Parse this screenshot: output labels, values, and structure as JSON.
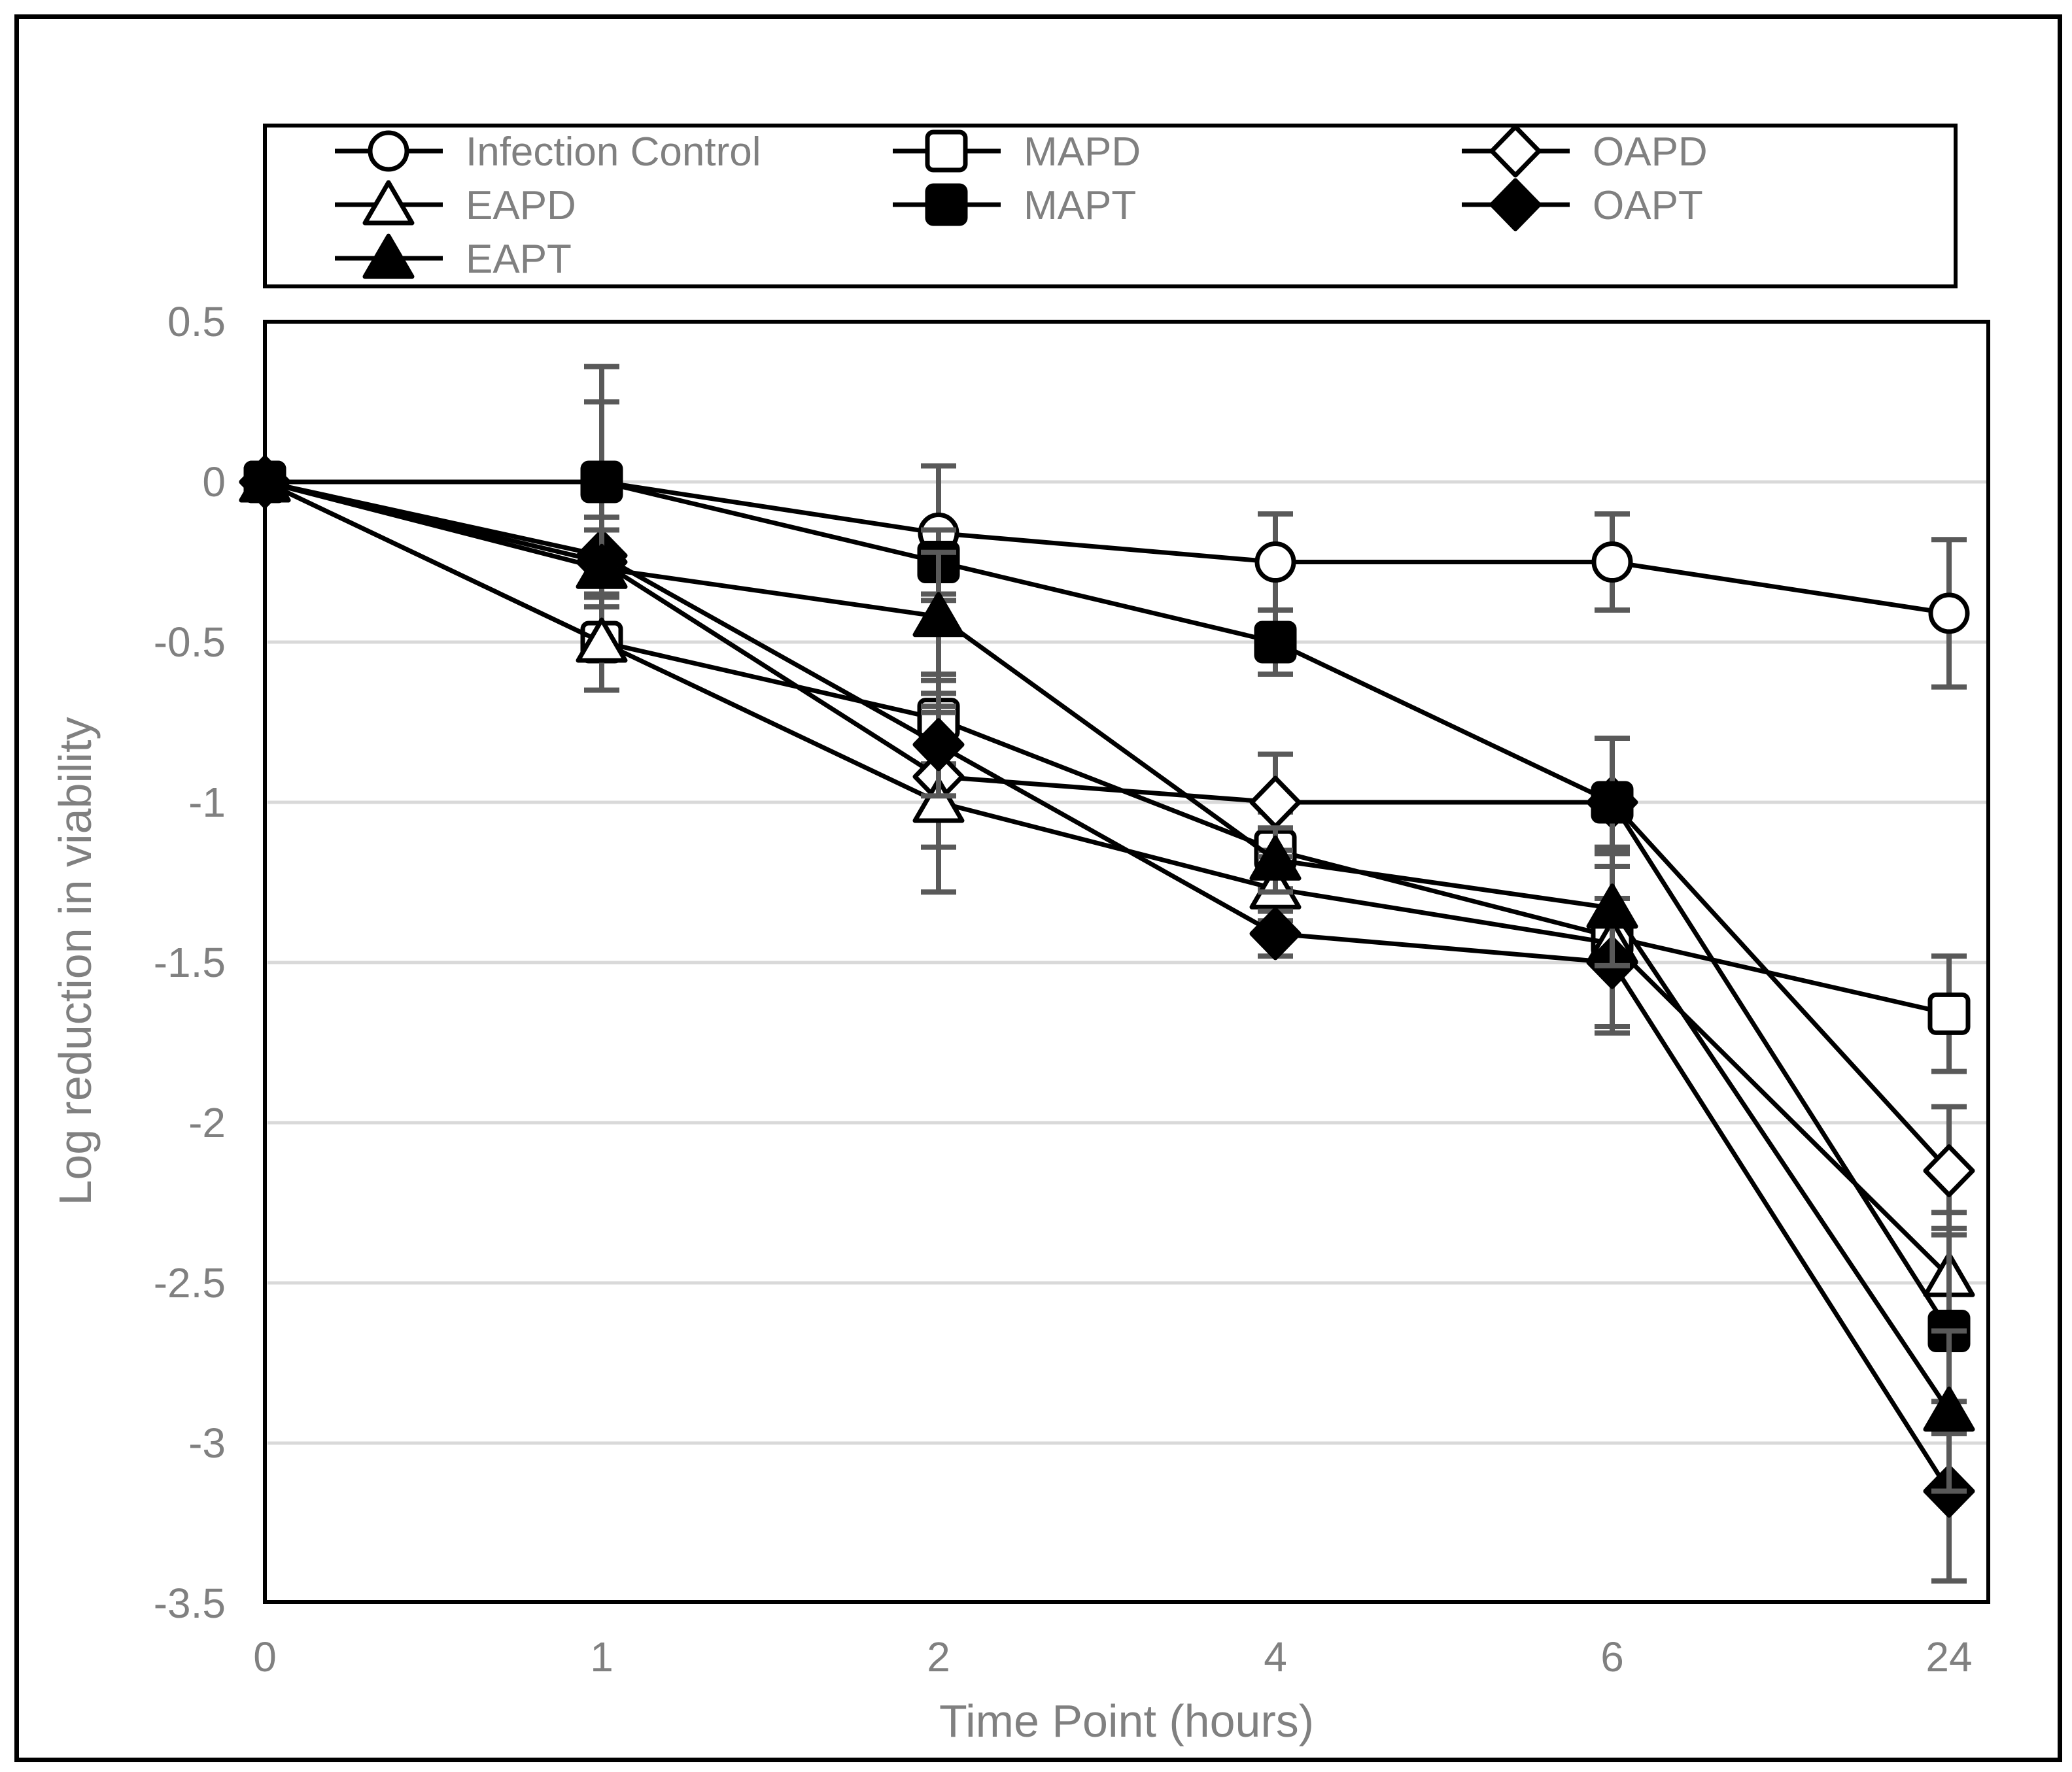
{
  "chart_data": {
    "type": "line",
    "xlabel": "Time Point (hours)",
    "ylabel": "Log reduction in viability",
    "x_axis_type": "categorical",
    "x_tick_labels": [
      "0",
      "1",
      "2",
      "4",
      "6",
      "24"
    ],
    "ylim": [
      -3.5,
      0.5
    ],
    "y_tick_step": 0.5,
    "y_tick_labels": [
      "0.5",
      "0",
      "-0.5",
      "-1",
      "-1.5",
      "-2",
      "-2.5",
      "-3",
      "-3.5"
    ],
    "grid": "horizontal-major",
    "legend_position": "top",
    "series": [
      {
        "name": "Infection Control",
        "marker": "circle-open",
        "values": [
          0,
          0,
          -0.16,
          -0.25,
          -0.25,
          -0.41
        ],
        "errors": [
          0,
          0.25,
          0.21,
          0.15,
          0.15,
          0.23
        ]
      },
      {
        "name": "MAPD",
        "marker": "square-open",
        "values": [
          0,
          -0.5,
          -0.74,
          -1.15,
          -1.42,
          -1.66
        ],
        "errors": [
          0,
          0.15,
          0.14,
          0.12,
          0.28,
          0.18
        ]
      },
      {
        "name": "OAPD",
        "marker": "diamond-open",
        "values": [
          0,
          -0.25,
          -0.92,
          -1.0,
          -1.0,
          -2.15
        ],
        "errors": [
          0,
          0,
          0.22,
          0.15,
          0,
          0.2
        ]
      },
      {
        "name": "EAPD",
        "marker": "triangle-open",
        "values": [
          0,
          -0.5,
          -1.0,
          -1.27,
          -1.44,
          -2.48
        ],
        "errors": [
          0,
          0.15,
          0.28,
          0.1,
          0.28,
          0.2
        ]
      },
      {
        "name": "MAPT",
        "marker": "square-filled",
        "values": [
          0,
          0,
          -0.25,
          -0.5,
          -1.0,
          -2.65
        ],
        "errors": [
          0,
          0.36,
          0.1,
          0.1,
          0.2,
          0.32
        ]
      },
      {
        "name": "OAPT",
        "marker": "diamond-filled",
        "values": [
          0,
          -0.23,
          -0.82,
          -1.41,
          -1.5,
          -3.15
        ],
        "errors": [
          0,
          0.12,
          0.16,
          0.07,
          0.2,
          0.28
        ]
      },
      {
        "name": "EAPT",
        "marker": "triangle-filled",
        "values": [
          0,
          -0.27,
          -0.42,
          -1.18,
          -1.33,
          -2.9
        ],
        "errors": [
          0,
          0.12,
          0.2,
          0.1,
          0.18,
          0.25
        ]
      }
    ],
    "legend_rows": [
      [
        0,
        1,
        2
      ],
      [
        3,
        4,
        5
      ],
      [
        6
      ]
    ]
  },
  "style": {
    "line_color": "#000000",
    "axis_text_color": "#808080",
    "grid_color": "#d9d9d9",
    "error_bar_color": "#595959",
    "marker_fill_open": "#ffffff",
    "marker_fill_solid": "#000000",
    "background": "#ffffff",
    "border_color": "#000000"
  }
}
